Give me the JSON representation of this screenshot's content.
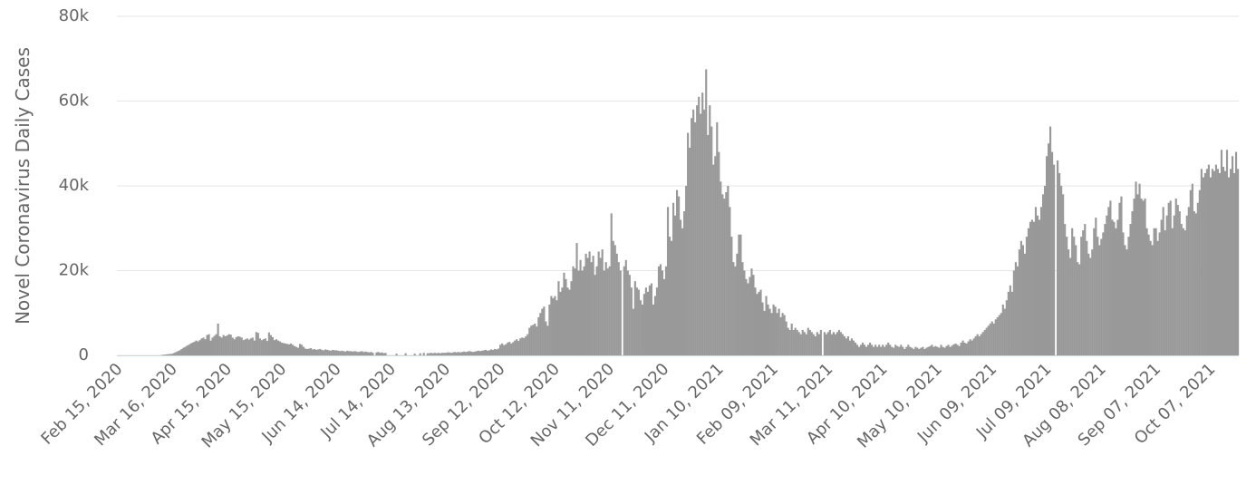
{
  "chart_data": {
    "type": "bar",
    "y_label": "Novel Coronavirus Daily Cases",
    "color": "#999999",
    "grid": true,
    "ylim": [
      0,
      80000
    ],
    "yticks": [
      0,
      {
        "value": 20000,
        "label": "20k"
      },
      {
        "value": 40000,
        "label": "40k"
      },
      {
        "value": 60000,
        "label": "60k"
      },
      {
        "value": 80000,
        "label": "80k"
      }
    ],
    "categories": [
      "Feb 15, 2020",
      null,
      null,
      null,
      null,
      null,
      null,
      null,
      null,
      null,
      null,
      null,
      null,
      null,
      null,
      null,
      null,
      null,
      null,
      null,
      null,
      null,
      null,
      null,
      null,
      null,
      null,
      null,
      null,
      null,
      "Mar 16, 2020",
      null,
      null,
      null,
      null,
      null,
      null,
      null,
      null,
      null,
      null,
      null,
      null,
      null,
      null,
      null,
      null,
      null,
      null,
      null,
      null,
      null,
      null,
      null,
      null,
      null,
      null,
      null,
      null,
      null,
      "Apr 15, 2020",
      null,
      null,
      null,
      null,
      null,
      null,
      null,
      null,
      null,
      null,
      null,
      null,
      null,
      null,
      null,
      null,
      null,
      null,
      null,
      null,
      null,
      null,
      null,
      null,
      null,
      null,
      null,
      null,
      null,
      "May 15, 2020",
      null,
      null,
      null,
      null,
      null,
      null,
      null,
      null,
      null,
      null,
      null,
      null,
      null,
      null,
      null,
      null,
      null,
      null,
      null,
      null,
      null,
      null,
      null,
      null,
      null,
      null,
      null,
      null,
      null,
      "Jun 14, 2020",
      null,
      null,
      null,
      null,
      null,
      null,
      null,
      null,
      null,
      null,
      null,
      null,
      null,
      null,
      null,
      null,
      null,
      null,
      null,
      null,
      null,
      null,
      null,
      null,
      null,
      null,
      null,
      null,
      null,
      "Jul 14, 2020",
      null,
      null,
      null,
      null,
      null,
      null,
      null,
      null,
      null,
      null,
      null,
      null,
      null,
      null,
      null,
      null,
      null,
      null,
      null,
      null,
      null,
      null,
      null,
      null,
      null,
      null,
      null,
      null,
      null,
      "Aug 13, 2020",
      null,
      null,
      null,
      null,
      null,
      null,
      null,
      null,
      null,
      null,
      null,
      null,
      null,
      null,
      null,
      null,
      null,
      null,
      null,
      null,
      null,
      null,
      null,
      null,
      null,
      null,
      null,
      null,
      null,
      "Sep 12, 2020",
      null,
      null,
      null,
      null,
      null,
      null,
      null,
      null,
      null,
      null,
      null,
      null,
      null,
      null,
      null,
      null,
      null,
      null,
      null,
      null,
      null,
      null,
      null,
      null,
      null,
      null,
      null,
      null,
      null,
      "Oct 12, 2020",
      null,
      null,
      null,
      null,
      null,
      null,
      null,
      null,
      null,
      null,
      null,
      null,
      null,
      null,
      null,
      null,
      null,
      null,
      null,
      null,
      null,
      null,
      null,
      null,
      null,
      null,
      null,
      null,
      null,
      "Nov 11, 2020",
      null,
      null,
      null,
      null,
      null,
      null,
      null,
      null,
      null,
      null,
      null,
      null,
      null,
      null,
      null,
      null,
      null,
      null,
      null,
      null,
      null,
      null,
      null,
      null,
      null,
      null,
      null,
      null,
      null,
      "Dec 11, 2020",
      null,
      null,
      null,
      null,
      null,
      null,
      null,
      null,
      null,
      null,
      null,
      null,
      null,
      null,
      null,
      null,
      null,
      null,
      null,
      null,
      null,
      null,
      null,
      null,
      null,
      null,
      null,
      null,
      null,
      "Jan 10, 2021",
      null,
      null,
      null,
      null,
      null,
      null,
      null,
      null,
      null,
      null,
      null,
      null,
      null,
      null,
      null,
      null,
      null,
      null,
      null,
      null,
      null,
      null,
      null,
      null,
      null,
      null,
      null,
      null,
      null,
      "Feb 09, 2021",
      null,
      null,
      null,
      null,
      null,
      null,
      null,
      null,
      null,
      null,
      null,
      null,
      null,
      null,
      null,
      null,
      null,
      null,
      null,
      null,
      null,
      null,
      null,
      null,
      null,
      null,
      null,
      null,
      null,
      "Mar 11, 2021",
      null,
      null,
      null,
      null,
      null,
      null,
      null,
      null,
      null,
      null,
      null,
      null,
      null,
      null,
      null,
      null,
      null,
      null,
      null,
      null,
      null,
      null,
      null,
      null,
      null,
      null,
      null,
      null,
      null,
      "Apr 10, 2021",
      null,
      null,
      null,
      null,
      null,
      null,
      null,
      null,
      null,
      null,
      null,
      null,
      null,
      null,
      null,
      null,
      null,
      null,
      null,
      null,
      null,
      null,
      null,
      null,
      null,
      null,
      null,
      null,
      null,
      "May 10, 2021",
      null,
      null,
      null,
      null,
      null,
      null,
      null,
      null,
      null,
      null,
      null,
      null,
      null,
      null,
      null,
      null,
      null,
      null,
      null,
      null,
      null,
      null,
      null,
      null,
      null,
      null,
      null,
      null,
      null,
      "Jun 09, 2021",
      null,
      null,
      null,
      null,
      null,
      null,
      null,
      null,
      null,
      null,
      null,
      null,
      null,
      null,
      null,
      null,
      null,
      null,
      null,
      null,
      null,
      null,
      null,
      null,
      null,
      null,
      null,
      null,
      null,
      "Jul 09, 2021",
      null,
      null,
      null,
      null,
      null,
      null,
      null,
      null,
      null,
      null,
      null,
      null,
      null,
      null,
      null,
      null,
      null,
      null,
      null,
      null,
      null,
      null,
      null,
      null,
      null,
      null,
      null,
      null,
      null,
      "Aug 08, 2021",
      null,
      null,
      null,
      null,
      null,
      null,
      null,
      null,
      null,
      null,
      null,
      null,
      null,
      null,
      null,
      null,
      null,
      null,
      null,
      null,
      null,
      null,
      null,
      null,
      null,
      null,
      null,
      null,
      null,
      "Sep 07, 2021",
      null,
      null,
      null,
      null,
      null,
      null,
      null,
      null,
      null,
      null,
      null,
      null,
      null,
      null,
      null,
      null,
      null,
      null,
      null,
      null,
      null,
      null,
      null,
      null,
      null,
      null,
      null,
      null,
      null,
      "Oct 07, 2021",
      null,
      null,
      null,
      null,
      null,
      null,
      null,
      null,
      null,
      null,
      null,
      null,
      null,
      null,
      null
    ],
    "values": [
      0,
      0,
      0,
      0,
      0,
      0,
      0,
      0,
      0,
      0,
      0,
      0,
      0,
      0,
      0,
      0,
      0,
      0,
      0,
      0,
      0,
      0,
      0,
      0,
      100,
      150,
      200,
      250,
      300,
      350,
      400,
      600,
      800,
      1000,
      1200,
      1500,
      1800,
      2000,
      2300,
      2500,
      2800,
      3000,
      3200,
      3500,
      3300,
      3600,
      4000,
      4200,
      3800,
      4800,
      5000,
      3500,
      4200,
      4600,
      5000,
      7500,
      4500,
      4200,
      4800,
      4500,
      4700,
      5000,
      4900,
      4200,
      3800,
      4300,
      4500,
      4400,
      4200,
      3600,
      3800,
      4000,
      3700,
      4000,
      4200,
      3500,
      5500,
      5300,
      4000,
      3600,
      3800,
      4000,
      3400,
      5400,
      4800,
      4300,
      3600,
      3800,
      3500,
      3300,
      3000,
      2900,
      2800,
      2700,
      2600,
      2800,
      2500,
      2200,
      2000,
      1800,
      2700,
      2500,
      2000,
      1600,
      1500,
      1600,
      1700,
      1400,
      1500,
      1300,
      1400,
      1500,
      1300,
      1200,
      1400,
      1300,
      1200,
      1100,
      1300,
      1200,
      1200,
      1100,
      1000,
      1100,
      1000,
      900,
      1100,
      1000,
      1000,
      900,
      1000,
      900,
      800,
      900,
      1000,
      800,
      900,
      800,
      700,
      800,
      600,
      0,
      700,
      800,
      600,
      700,
      500,
      600,
      0,
      0,
      0,
      0,
      0,
      400,
      0,
      0,
      0,
      0,
      500,
      0,
      0,
      0,
      0,
      400,
      0,
      0,
      500,
      0,
      600,
      0,
      500,
      500,
      600,
      500,
      600,
      500,
      600,
      500,
      600,
      600,
      600,
      700,
      700,
      600,
      700,
      800,
      700,
      800,
      700,
      800,
      900,
      800,
      900,
      1000,
      900,
      800,
      900,
      1000,
      1100,
      1000,
      1100,
      1200,
      1300,
      1100,
      1200,
      1400,
      1300,
      1500,
      1400,
      1600,
      2500,
      2800,
      2400,
      2600,
      3000,
      3200,
      2800,
      3100,
      3500,
      3800,
      3400,
      4000,
      4200,
      4100,
      4500,
      5000,
      6500,
      7000,
      7200,
      7500,
      6800,
      9000,
      10000,
      11000,
      11500,
      8000,
      7000,
      12000,
      14000,
      13500,
      14000,
      13000,
      17500,
      15000,
      16000,
      19500,
      18000,
      16000,
      15500,
      17500,
      21000,
      20500,
      26500,
      20000,
      22500,
      20000,
      21000,
      24000,
      23000,
      24500,
      22000,
      23500,
      19000,
      21000,
      24500,
      23000,
      25000,
      20000,
      22000,
      20500,
      21000,
      33500,
      27000,
      26000,
      24000,
      22000,
      20000,
      0,
      21000,
      22500,
      20000,
      19000,
      16000,
      11000,
      17500,
      16000,
      15500,
      13000,
      12000,
      14500,
      16000,
      15000,
      16500,
      17000,
      12000,
      14000,
      16000,
      21000,
      21500,
      20000,
      18000,
      21000,
      35000,
      28000,
      27000,
      36000,
      33000,
      39000,
      37500,
      32000,
      30000,
      34000,
      40000,
      52500,
      49000,
      56000,
      58000,
      55000,
      59000,
      61000,
      57000,
      62000,
      58000,
      67500,
      52000,
      59000,
      54000,
      45000,
      47000,
      55000,
      48000,
      41000,
      38000,
      37000,
      38500,
      40000,
      35000,
      28000,
      22000,
      21000,
      24000,
      28500,
      28500,
      22000,
      20000,
      18000,
      17000,
      18500,
      20500,
      19000,
      16000,
      14500,
      15000,
      15500,
      12500,
      10500,
      14000,
      12000,
      11000,
      10000,
      12000,
      11500,
      10000,
      11000,
      9000,
      10000,
      9500,
      8000,
      6500,
      6000,
      7500,
      6000,
      6500,
      6000,
      5500,
      5000,
      6000,
      5500,
      5000,
      6500,
      6000,
      5500,
      5000,
      4500,
      5500,
      5000,
      6000,
      0,
      5500,
      5000,
      5500,
      6000,
      5000,
      5500,
      5000,
      5500,
      6000,
      5500,
      5000,
      4500,
      4000,
      4500,
      3500,
      4000,
      3500,
      3000,
      2500,
      2000,
      2500,
      3000,
      2500,
      2000,
      2500,
      3000,
      2500,
      2000,
      2500,
      2000,
      2500,
      2000,
      2500,
      2000,
      2500,
      3000,
      2500,
      2000,
      1800,
      2500,
      2200,
      2000,
      2500,
      2000,
      1500,
      2000,
      2500,
      2000,
      1800,
      1500,
      2000,
      1800,
      1500,
      1800,
      2000,
      1500,
      1800,
      2000,
      2200,
      2500,
      2000,
      2200,
      2000,
      1800,
      2500,
      2000,
      1800,
      2200,
      2500,
      2000,
      2300,
      2600,
      2800,
      2500,
      2200,
      3000,
      3500,
      3000,
      2800,
      3300,
      3800,
      3500,
      4000,
      4500,
      5000,
      4500,
      5000,
      5500,
      6000,
      6500,
      7000,
      7500,
      8000,
      7500,
      8500,
      9000,
      9500,
      10000,
      12000,
      11000,
      13000,
      15000,
      16500,
      15000,
      20000,
      22000,
      21000,
      25000,
      27000,
      26000,
      24000,
      28000,
      30000,
      31500,
      32000,
      31500,
      35000,
      33000,
      32000,
      35000,
      38000,
      40000,
      47000,
      50000,
      54000,
      48000,
      45000,
      0,
      46000,
      43000,
      40000,
      38000,
      31000,
      28000,
      25000,
      23000,
      30000,
      28000,
      26000,
      22000,
      21500,
      28000,
      29500,
      31000,
      27000,
      24000,
      23000,
      25000,
      30000,
      32500,
      28000,
      26000,
      27500,
      29000,
      31000,
      33000,
      35000,
      36500,
      32000,
      31500,
      30000,
      32000,
      36000,
      37500,
      29000,
      26000,
      25000,
      28000,
      31000,
      34000,
      37000,
      41000,
      38000,
      40500,
      37000,
      36500,
      37000,
      30000,
      28500,
      27000,
      26000,
      30000,
      30000,
      27000,
      29000,
      32000,
      35000,
      29500,
      33000,
      36000,
      36500,
      30000,
      33000,
      37000,
      35500,
      34000,
      31000,
      30000,
      29500,
      33000,
      35000,
      39000,
      40500,
      34000,
      33500,
      36000,
      39000,
      44000,
      42000,
      43000,
      44000,
      45000,
      42000,
      44000,
      43500,
      45000,
      44000,
      43000,
      48500,
      44500,
      43500,
      48500,
      42000,
      44000,
      47000,
      43000,
      48000,
      44000
    ]
  }
}
